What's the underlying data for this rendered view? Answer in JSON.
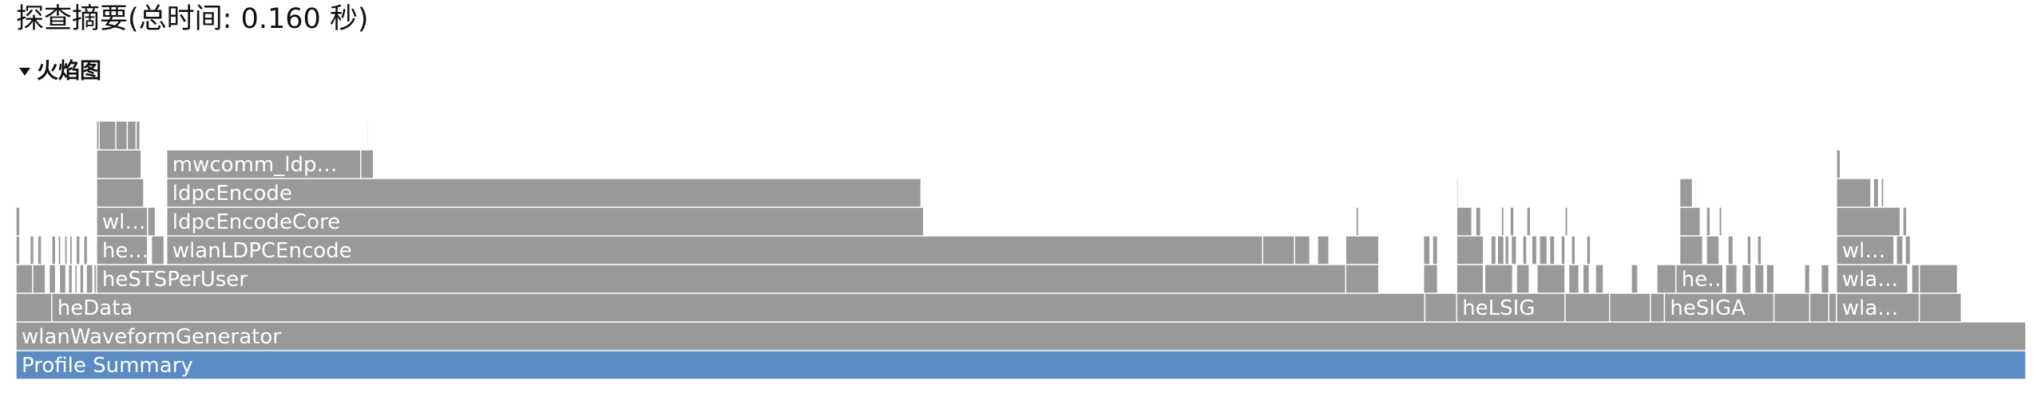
{
  "summary": {
    "title": "探查摘要(总时间: 0.160 秒)"
  },
  "flame_section": {
    "toggle_label": "火焰图",
    "expanded": true
  },
  "flame_graph": {
    "root": "Profile Summary",
    "frames": [
      {
        "label": "Profile Summary",
        "depth": 0,
        "start": 0,
        "end": 1.0,
        "root": true
      },
      {
        "label": "wlanWaveformGenerator",
        "depth": 1,
        "start": 0,
        "end": 1.0
      },
      {
        "label": "",
        "depth": 2,
        "start": 0.0,
        "end": 0.0178
      },
      {
        "label": "heData",
        "depth": 2,
        "start": 0.0178,
        "end": 0.701
      },
      {
        "label": "",
        "depth": 2,
        "start": 0.701,
        "end": 0.7168
      },
      {
        "label": "heLSIG",
        "depth": 2,
        "start": 0.7168,
        "end": 0.7707
      },
      {
        "label": "",
        "depth": 2,
        "start": 0.7707,
        "end": 0.7929
      },
      {
        "label": "",
        "depth": 2,
        "start": 0.7929,
        "end": 0.8132
      },
      {
        "label": "",
        "depth": 2,
        "start": 0.8132,
        "end": 0.8202
      },
      {
        "label": "heSIGA",
        "depth": 2,
        "start": 0.8202,
        "end": 0.8747
      },
      {
        "label": "",
        "depth": 2,
        "start": 0.8747,
        "end": 0.8925
      },
      {
        "label": "",
        "depth": 2,
        "start": 0.8925,
        "end": 0.902
      },
      {
        "label": "",
        "depth": 2,
        "start": 0.902,
        "end": 0.9058
      },
      {
        "label": "wla…",
        "depth": 2,
        "start": 0.9058,
        "end": 0.947
      },
      {
        "label": "",
        "depth": 2,
        "start": 0.947,
        "end": 0.9679
      },
      {
        "label": "",
        "depth": 3,
        "start": 0.0,
        "end": 0.0083
      },
      {
        "label": "",
        "depth": 3,
        "start": 0.0083,
        "end": 0.0146
      },
      {
        "label": "",
        "depth": 3,
        "start": 0.0165,
        "end": 0.0197
      },
      {
        "label": "",
        "depth": 3,
        "start": 0.0216,
        "end": 0.0248
      },
      {
        "label": "",
        "depth": 3,
        "start": 0.0261,
        "end": 0.028
      },
      {
        "label": "",
        "depth": 3,
        "start": 0.0293,
        "end": 0.0305
      },
      {
        "label": "",
        "depth": 3,
        "start": 0.0318,
        "end": 0.0337
      },
      {
        "label": "",
        "depth": 3,
        "start": 0.035,
        "end": 0.0382
      },
      {
        "label": "",
        "depth": 3,
        "start": 0.0388,
        "end": 0.0401
      },
      {
        "label": "heSTSPerUser",
        "depth": 3,
        "start": 0.0401,
        "end": 0.6616
      },
      {
        "label": "",
        "depth": 3,
        "start": 0.6616,
        "end": 0.6781
      },
      {
        "label": "",
        "depth": 3,
        "start": 0.7003,
        "end": 0.7073
      },
      {
        "label": "",
        "depth": 3,
        "start": 0.7168,
        "end": 0.7301
      },
      {
        "label": "",
        "depth": 3,
        "start": 0.7308,
        "end": 0.7447
      },
      {
        "label": "",
        "depth": 3,
        "start": 0.7466,
        "end": 0.7529
      },
      {
        "label": "",
        "depth": 3,
        "start": 0.7568,
        "end": 0.7707
      },
      {
        "label": "",
        "depth": 3,
        "start": 0.7726,
        "end": 0.7777
      },
      {
        "label": "",
        "depth": 3,
        "start": 0.7796,
        "end": 0.7828
      },
      {
        "label": "",
        "depth": 3,
        "start": 0.7859,
        "end": 0.7898
      },
      {
        "label": "",
        "depth": 3,
        "start": 0.8037,
        "end": 0.8069
      },
      {
        "label": "",
        "depth": 3,
        "start": 0.8164,
        "end": 0.8259
      },
      {
        "label": "he…",
        "depth": 3,
        "start": 0.8259,
        "end": 0.8493
      },
      {
        "label": "",
        "depth": 3,
        "start": 0.8506,
        "end": 0.8563
      },
      {
        "label": "",
        "depth": 3,
        "start": 0.8588,
        "end": 0.8633
      },
      {
        "label": "",
        "depth": 3,
        "start": 0.8652,
        "end": 0.8697
      },
      {
        "label": "",
        "depth": 3,
        "start": 0.8709,
        "end": 0.8747
      },
      {
        "label": "",
        "depth": 3,
        "start": 0.8899,
        "end": 0.8925
      },
      {
        "label": "",
        "depth": 3,
        "start": 0.8982,
        "end": 0.902
      },
      {
        "label": "wla…",
        "depth": 3,
        "start": 0.9058,
        "end": 0.9413
      },
      {
        "label": "",
        "depth": 3,
        "start": 0.9432,
        "end": 0.947
      },
      {
        "label": "",
        "depth": 3,
        "start": 0.947,
        "end": 0.966
      },
      {
        "label": "",
        "depth": 4,
        "start": 0.0,
        "end": 0.0019
      },
      {
        "label": "",
        "depth": 4,
        "start": 0.007,
        "end": 0.0089
      },
      {
        "label": "",
        "depth": 4,
        "start": 0.0108,
        "end": 0.0127
      },
      {
        "label": "",
        "depth": 4,
        "start": 0.0178,
        "end": 0.0197
      },
      {
        "label": "",
        "depth": 4,
        "start": 0.021,
        "end": 0.0223
      },
      {
        "label": "",
        "depth": 4,
        "start": 0.0242,
        "end": 0.0255
      },
      {
        "label": "",
        "depth": 4,
        "start": 0.0267,
        "end": 0.028
      },
      {
        "label": "",
        "depth": 4,
        "start": 0.0299,
        "end": 0.0318
      },
      {
        "label": "",
        "depth": 4,
        "start": 0.0337,
        "end": 0.0356
      },
      {
        "label": "he…",
        "depth": 4,
        "start": 0.0401,
        "end": 0.0655
      },
      {
        "label": "",
        "depth": 4,
        "start": 0.0674,
        "end": 0.0737
      },
      {
        "label": "wlanLDPCEncode",
        "depth": 4,
        "start": 0.075,
        "end": 0.6203
      },
      {
        "label": "",
        "depth": 4,
        "start": 0.6203,
        "end": 0.6362
      },
      {
        "label": "",
        "depth": 4,
        "start": 0.6362,
        "end": 0.6438
      },
      {
        "label": "",
        "depth": 4,
        "start": 0.6476,
        "end": 0.6533
      },
      {
        "label": "",
        "depth": 4,
        "start": 0.6616,
        "end": 0.6781
      },
      {
        "label": "",
        "depth": 4,
        "start": 0.7003,
        "end": 0.7035
      },
      {
        "label": "",
        "depth": 4,
        "start": 0.7048,
        "end": 0.7073
      },
      {
        "label": "",
        "depth": 4,
        "start": 0.7168,
        "end": 0.7301
      },
      {
        "label": "",
        "depth": 4,
        "start": 0.7339,
        "end": 0.7364
      },
      {
        "label": "",
        "depth": 4,
        "start": 0.7371,
        "end": 0.7403
      },
      {
        "label": "",
        "depth": 4,
        "start": 0.7409,
        "end": 0.7428
      },
      {
        "label": "",
        "depth": 4,
        "start": 0.744,
        "end": 0.7466
      },
      {
        "label": "",
        "depth": 4,
        "start": 0.7497,
        "end": 0.7517
      },
      {
        "label": "",
        "depth": 4,
        "start": 0.7542,
        "end": 0.7567
      },
      {
        "label": "",
        "depth": 4,
        "start": 0.758,
        "end": 0.7618
      },
      {
        "label": "",
        "depth": 4,
        "start": 0.7631,
        "end": 0.7656
      },
      {
        "label": "",
        "depth": 4,
        "start": 0.7688,
        "end": 0.7707
      },
      {
        "label": "",
        "depth": 4,
        "start": 0.7739,
        "end": 0.7758
      },
      {
        "label": "",
        "depth": 4,
        "start": 0.7815,
        "end": 0.7834
      },
      {
        "label": "",
        "depth": 4,
        "start": 0.8278,
        "end": 0.8392
      },
      {
        "label": "",
        "depth": 4,
        "start": 0.8411,
        "end": 0.8474
      },
      {
        "label": "",
        "depth": 4,
        "start": 0.8518,
        "end": 0.8544
      },
      {
        "label": "",
        "depth": 4,
        "start": 0.8614,
        "end": 0.8633
      },
      {
        "label": "",
        "depth": 4,
        "start": 0.8665,
        "end": 0.8684
      },
      {
        "label": "wl…",
        "depth": 4,
        "start": 0.9058,
        "end": 0.9344
      },
      {
        "label": "",
        "depth": 4,
        "start": 0.9356,
        "end": 0.9388
      },
      {
        "label": "",
        "depth": 4,
        "start": 0.94,
        "end": 0.9426
      },
      {
        "label": "",
        "depth": 5,
        "start": 0.0,
        "end": 0.0019
      },
      {
        "label": "wl…",
        "depth": 5,
        "start": 0.0401,
        "end": 0.0655
      },
      {
        "label": "",
        "depth": 5,
        "start": 0.0655,
        "end": 0.0693
      },
      {
        "label": "ldpcEncodeCore",
        "depth": 5,
        "start": 0.075,
        "end": 0.4516
      },
      {
        "label": "",
        "depth": 5,
        "start": 0.6667,
        "end": 0.668
      },
      {
        "label": "",
        "depth": 5,
        "start": 0.7168,
        "end": 0.7244
      },
      {
        "label": "",
        "depth": 5,
        "start": 0.7263,
        "end": 0.7288
      },
      {
        "label": "",
        "depth": 5,
        "start": 0.739,
        "end": 0.7403
      },
      {
        "label": "",
        "depth": 5,
        "start": 0.7434,
        "end": 0.7453
      },
      {
        "label": "",
        "depth": 5,
        "start": 0.7517,
        "end": 0.7536
      },
      {
        "label": "",
        "depth": 5,
        "start": 0.7707,
        "end": 0.772
      },
      {
        "label": "",
        "depth": 5,
        "start": 0.8278,
        "end": 0.838
      },
      {
        "label": "",
        "depth": 5,
        "start": 0.8411,
        "end": 0.843
      },
      {
        "label": "",
        "depth": 5,
        "start": 0.8474,
        "end": 0.8487
      },
      {
        "label": "",
        "depth": 5,
        "start": 0.9058,
        "end": 0.9375
      },
      {
        "label": "",
        "depth": 5,
        "start": 0.9388,
        "end": 0.9407
      },
      {
        "label": "",
        "depth": 6,
        "start": 0.0401,
        "end": 0.0636
      },
      {
        "label": "ldpcEncode",
        "depth": 6,
        "start": 0.075,
        "end": 0.4503
      },
      {
        "label": "",
        "depth": 6,
        "start": 0.7168,
        "end": 0.7175
      },
      {
        "label": "",
        "depth": 6,
        "start": 0.8278,
        "end": 0.8341
      },
      {
        "label": "",
        "depth": 6,
        "start": 0.8354,
        "end": 0.836
      },
      {
        "label": "",
        "depth": 6,
        "start": 0.9058,
        "end": 0.9229
      },
      {
        "label": "",
        "depth": 6,
        "start": 0.9242,
        "end": 0.9267
      },
      {
        "label": "",
        "depth": 6,
        "start": 0.928,
        "end": 0.9293
      },
      {
        "label": "",
        "depth": 7,
        "start": 0.0401,
        "end": 0.0623
      },
      {
        "label": "mwcomm_ldp…",
        "depth": 7,
        "start": 0.075,
        "end": 0.1715
      },
      {
        "label": "",
        "depth": 7,
        "start": 0.1715,
        "end": 0.1778
      },
      {
        "label": "",
        "depth": 7,
        "start": 0.9058,
        "end": 0.9077
      },
      {
        "label": "",
        "depth": 8,
        "start": 0.0401,
        "end": 0.0414
      },
      {
        "label": "",
        "depth": 8,
        "start": 0.0414,
        "end": 0.0497
      },
      {
        "label": "",
        "depth": 8,
        "start": 0.0497,
        "end": 0.0554
      },
      {
        "label": "",
        "depth": 8,
        "start": 0.0554,
        "end": 0.0598
      },
      {
        "label": "",
        "depth": 8,
        "start": 0.0598,
        "end": 0.0617
      },
      {
        "label": "",
        "depth": 8,
        "start": 0.1747,
        "end": 0.1753
      }
    ]
  }
}
